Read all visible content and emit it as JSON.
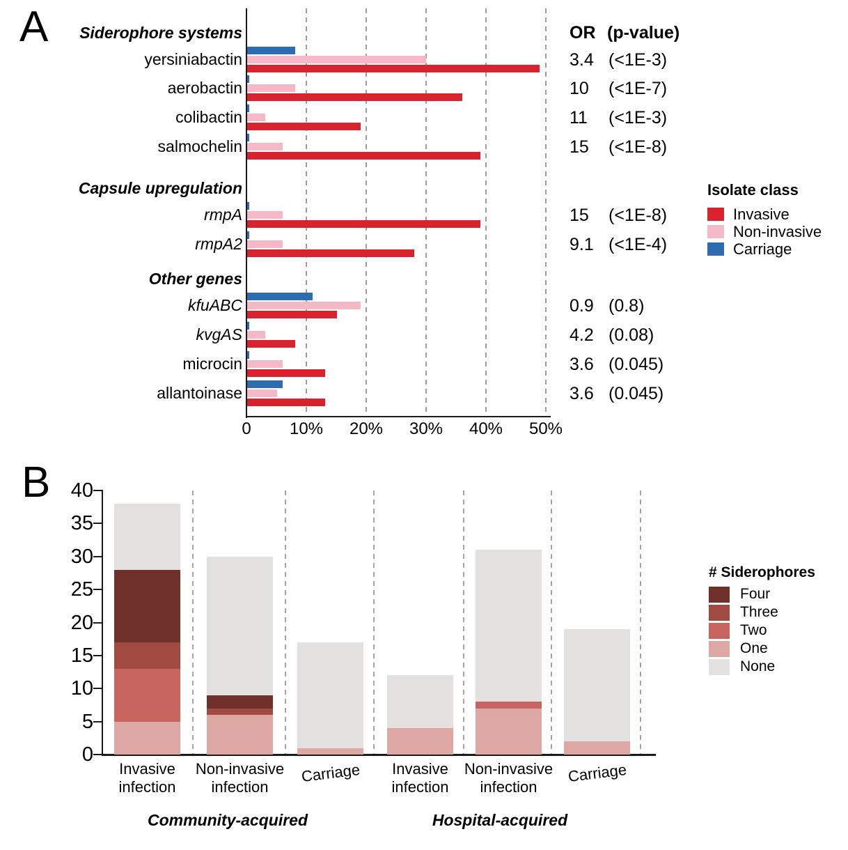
{
  "chart_data": [
    {
      "panel_label": "A",
      "type": "bar",
      "orientation": "horizontal",
      "value_unit": "percent of isolates",
      "xlim": [
        0,
        50
      ],
      "x_ticks": [
        "0",
        "10%",
        "20%",
        "30%",
        "40%",
        "50%"
      ],
      "or_header": {
        "or": "OR",
        "p": "(p-value)"
      },
      "legend_title": "Isolate class",
      "series": [
        "Invasive",
        "Non-invasive",
        "Carriage"
      ],
      "colors": {
        "Invasive": "#d8222d",
        "Non-invasive": "#f4b8c6",
        "Carriage": "#2d6cb1"
      },
      "sections": [
        {
          "header": "Siderophore systems",
          "genes": [
            {
              "name": "yersiniabactin",
              "italic": false,
              "invasive_pct": 49,
              "non_invasive_pct": 30,
              "carriage_pct": 8,
              "or": "3.4",
              "p_value": "(<1E-3)"
            },
            {
              "name": "aerobactin",
              "italic": false,
              "invasive_pct": 36,
              "non_invasive_pct": 8,
              "carriage_pct": 0.3,
              "or": "10",
              "p_value": "(<1E-7)"
            },
            {
              "name": "colibactin",
              "italic": false,
              "invasive_pct": 19,
              "non_invasive_pct": 3,
              "carriage_pct": 0.3,
              "or": "11",
              "p_value": "(<1E-3)"
            },
            {
              "name": "salmochelin",
              "italic": false,
              "invasive_pct": 39,
              "non_invasive_pct": 6,
              "carriage_pct": 0.3,
              "or": "15",
              "p_value": "(<1E-8)"
            }
          ]
        },
        {
          "header": "Capsule upregulation",
          "genes": [
            {
              "name": "rmpA",
              "italic": true,
              "invasive_pct": 39,
              "non_invasive_pct": 6,
              "carriage_pct": 0.3,
              "or": "15",
              "p_value": "(<1E-8)"
            },
            {
              "name": "rmpA2",
              "italic": true,
              "invasive_pct": 28,
              "non_invasive_pct": 6,
              "carriage_pct": 0.3,
              "or": "9.1",
              "p_value": "(<1E-4)"
            }
          ]
        },
        {
          "header": "Other genes",
          "genes": [
            {
              "name": "kfuABC",
              "italic": true,
              "invasive_pct": 15,
              "non_invasive_pct": 19,
              "carriage_pct": 11,
              "or": "0.9",
              "p_value": "(0.8)"
            },
            {
              "name": "kvgAS",
              "italic": true,
              "invasive_pct": 8,
              "non_invasive_pct": 3,
              "carriage_pct": 0.3,
              "or": "4.2",
              "p_value": "(0.08)"
            },
            {
              "name": "microcin",
              "italic": false,
              "invasive_pct": 13,
              "non_invasive_pct": 6,
              "carriage_pct": 0.3,
              "or": "3.6",
              "p_value": "(0.045)"
            },
            {
              "name": "allantoinase",
              "italic": false,
              "invasive_pct": 13,
              "non_invasive_pct": 5,
              "carriage_pct": 6,
              "or": "3.6",
              "p_value": "(0.045)"
            }
          ]
        }
      ]
    },
    {
      "panel_label": "B",
      "type": "stacked_bar",
      "ylim": [
        0,
        40
      ],
      "y_ticks": [
        0,
        5,
        10,
        15,
        20,
        25,
        30,
        35,
        40
      ],
      "legend_title": "# Siderophores",
      "stack_order_bottom_to_top": [
        "One",
        "Two",
        "Three",
        "Four",
        "None"
      ],
      "legend_order": [
        "Four",
        "Three",
        "Two",
        "One",
        "None"
      ],
      "colors": {
        "Four": "#6f3129",
        "Three": "#a14a42",
        "Two": "#c7645d",
        "One": "#dda7a4",
        "None": "#e2e1e0"
      },
      "groups": [
        {
          "label": "Community-acquired",
          "bars": [
            {
              "label": "Invasive\ninfection",
              "total": 38,
              "segments": {
                "One": 5,
                "Two": 8,
                "Three": 4,
                "Four": 11,
                "None": 10
              }
            },
            {
              "label": "Non-invasive\ninfection",
              "total": 30,
              "segments": {
                "One": 6,
                "Two": 0,
                "Three": 1,
                "Four": 2,
                "None": 21
              }
            },
            {
              "label": "Carriage",
              "total": 17,
              "segments": {
                "One": 1,
                "Two": 0,
                "Three": 0,
                "Four": 0,
                "None": 16
              }
            }
          ]
        },
        {
          "label": "Hospital-acquired",
          "bars": [
            {
              "label": "Invasive\ninfection",
              "total": 12,
              "segments": {
                "One": 4,
                "Two": 0,
                "Three": 0,
                "Four": 0,
                "None": 8
              }
            },
            {
              "label": "Non-invasive\ninfection",
              "total": 31,
              "segments": {
                "One": 7,
                "Two": 1,
                "Three": 0,
                "Four": 0,
                "None": 23
              }
            },
            {
              "label": "Carriage",
              "total": 19,
              "segments": {
                "One": 2,
                "Two": 0,
                "Three": 0,
                "Four": 0,
                "None": 17
              }
            }
          ]
        }
      ]
    }
  ]
}
